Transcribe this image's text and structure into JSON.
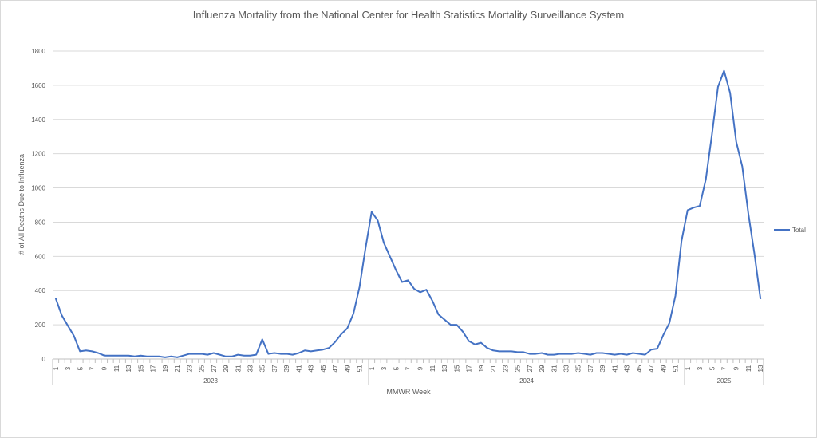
{
  "chart_data": {
    "type": "line",
    "title": "Influenza Mortality from the National Center for Health Statistics Mortality Surveillance System",
    "xlabel": "MMWR Week",
    "ylabel": "# of All Deaths Due to Influenza",
    "ylim": [
      0,
      1800
    ],
    "yticks": [
      0,
      200,
      400,
      600,
      800,
      1000,
      1200,
      1400,
      1600,
      1800
    ],
    "grid": true,
    "legend_position": "right",
    "line_color": "#4472C4",
    "years": [
      {
        "label": "2023",
        "weeks": 52
      },
      {
        "label": "2024",
        "weeks": 52
      },
      {
        "label": "2025",
        "weeks": 13
      }
    ],
    "series": [
      {
        "name": "Total",
        "values": [
          355,
          255,
          195,
          135,
          45,
          50,
          45,
          35,
          20,
          20,
          20,
          20,
          20,
          15,
          20,
          15,
          15,
          15,
          10,
          15,
          10,
          20,
          30,
          30,
          30,
          25,
          35,
          25,
          15,
          15,
          25,
          20,
          20,
          25,
          115,
          30,
          35,
          30,
          30,
          25,
          35,
          50,
          45,
          50,
          55,
          65,
          100,
          145,
          180,
          265,
          420,
          650,
          860,
          810,
          680,
          600,
          520,
          450,
          460,
          410,
          390,
          405,
          340,
          260,
          230,
          200,
          200,
          160,
          105,
          85,
          95,
          65,
          50,
          45,
          45,
          45,
          40,
          40,
          30,
          30,
          35,
          25,
          25,
          30,
          30,
          30,
          35,
          30,
          25,
          35,
          35,
          30,
          25,
          30,
          25,
          35,
          30,
          25,
          55,
          60,
          140,
          210,
          370,
          690,
          870,
          885,
          895,
          1050,
          1310,
          1590,
          1685,
          1555,
          1270,
          1125,
          850,
          615,
          350
        ]
      }
    ]
  }
}
